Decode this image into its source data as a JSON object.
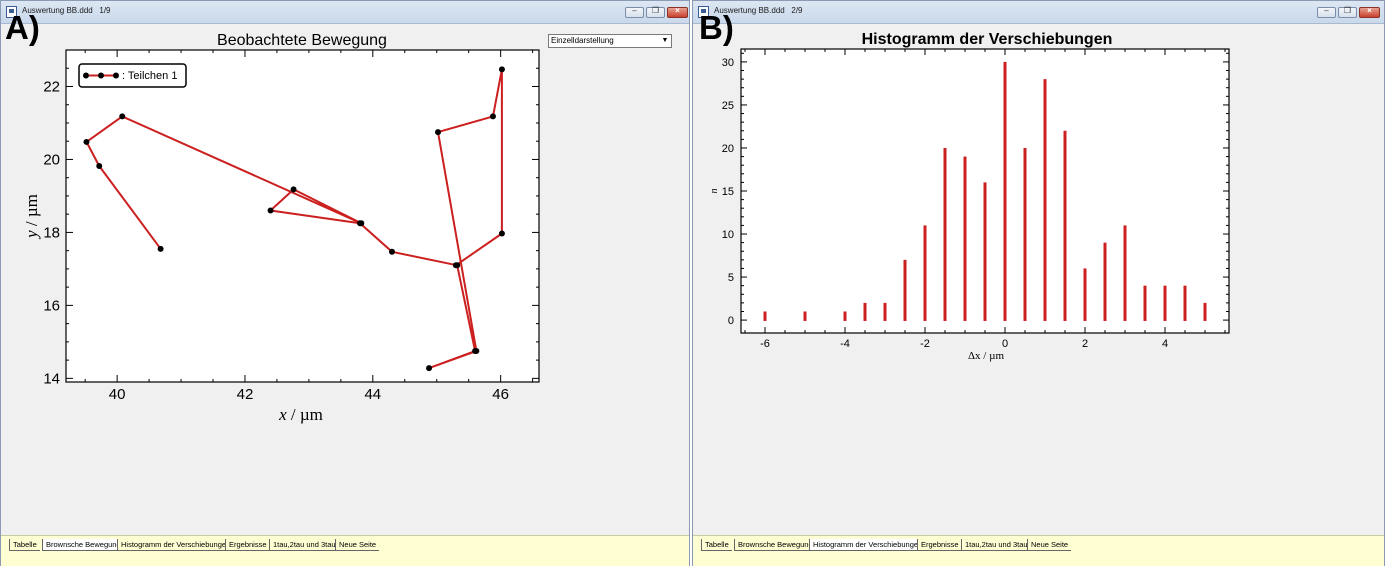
{
  "panel_a": {
    "label": "A)",
    "window_title": "Auswertung BB.ddd   1/9",
    "dropdown_value": "Einzelldarstellung",
    "tabs": [
      "Tabelle",
      "Brownsche Bewegung",
      "Histogramm der Verschiebungen",
      "Ergebnisse",
      "1tau,2tau und 3tau",
      "Neue Seite"
    ],
    "active_tab": 1,
    "chart_data": {
      "type": "line",
      "title": "Beobachtete Bewegung",
      "xlabel_var": "x",
      "xlabel_unit": " / µm",
      "ylabel_var": "y",
      "ylabel_unit": " / µm",
      "xlim": [
        39.2,
        46.6
      ],
      "ylim": [
        13.9,
        23.0
      ],
      "x_ticks": [
        40,
        42,
        44,
        46
      ],
      "y_ticks": [
        14,
        16,
        18,
        20,
        22
      ],
      "legend": "top-left",
      "series": [
        {
          "name": ": Teilchen 1",
          "color": "#cc1f1f",
          "x": [
            40.68,
            39.72,
            39.52,
            40.08,
            43.82,
            42.76,
            42.4,
            43.8,
            44.3,
            45.32,
            45.6,
            44.88,
            45.62,
            45.02,
            45.88,
            46.02,
            46.02,
            45.3
          ],
          "y": [
            17.55,
            19.82,
            20.48,
            21.18,
            18.25,
            19.18,
            18.6,
            18.25,
            17.47,
            17.1,
            14.75,
            14.28,
            14.75,
            20.75,
            21.18,
            22.47,
            17.97,
            17.1
          ]
        }
      ]
    }
  },
  "panel_b": {
    "label": "B)",
    "window_title": "Auswertung BB.ddd   2/9",
    "tabs": [
      "Tabelle",
      "Brownsche Bewegung",
      "Histogramm der Verschiebungen",
      "Ergebnisse",
      "1tau,2tau und 3tau",
      "Neue Seite"
    ],
    "active_tab": 2,
    "chart_data": {
      "type": "bar",
      "title": "Histogramm der Verschiebungen",
      "xlabel": "Δx / µm",
      "ylabel": "n",
      "xlim": [
        -6.6,
        5.6
      ],
      "ylim": [
        -1.5,
        31.5
      ],
      "x_ticks": [
        -6,
        -4,
        -2,
        0,
        2,
        4
      ],
      "y_ticks": [
        0,
        5,
        10,
        15,
        20,
        25,
        30
      ],
      "color": "#cc1f1f",
      "x": [
        -6,
        -5,
        -4,
        -3.5,
        -3,
        -2.5,
        -2,
        -1.5,
        -1,
        -0.5,
        0,
        0.5,
        1,
        1.5,
        2,
        2.5,
        3,
        3.5,
        4,
        4.5,
        5
      ],
      "values": [
        1,
        1,
        1,
        2,
        2,
        7,
        11,
        20,
        19,
        16,
        30,
        20,
        28,
        22,
        6,
        9,
        11,
        4,
        4,
        4,
        2
      ]
    }
  }
}
